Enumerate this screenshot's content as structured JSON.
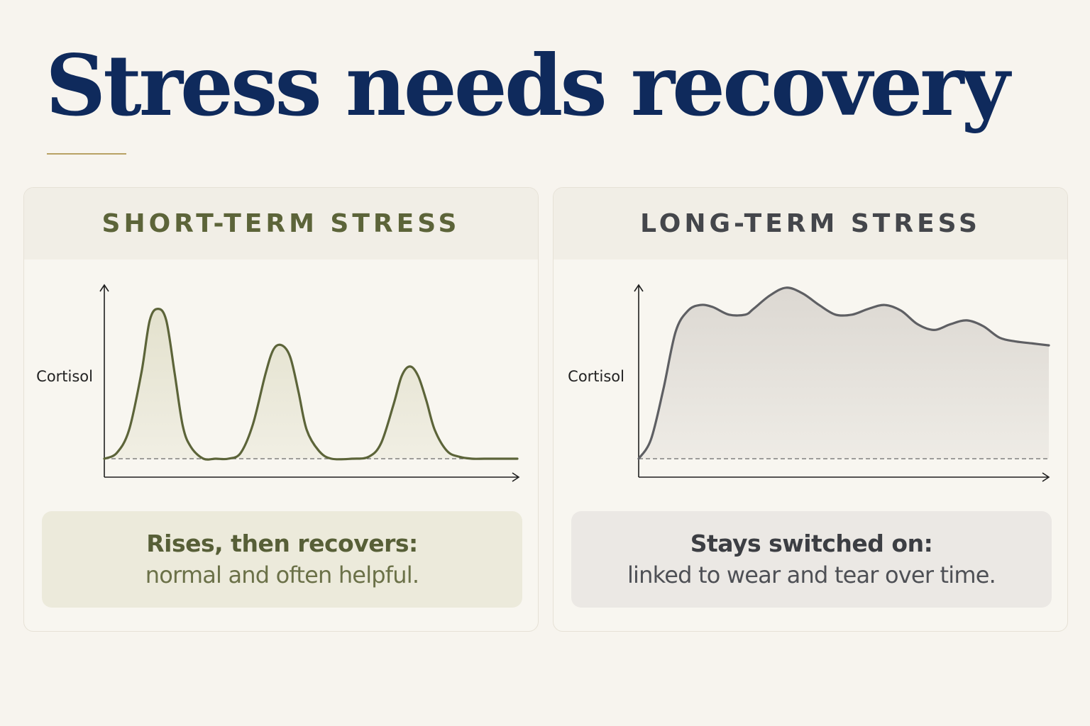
{
  "title": "Stress needs recovery",
  "colors": {
    "title": "#0f2a5c",
    "accent_rule": "#b8a164",
    "short_line": "#5c6439",
    "short_fill": "#e3e1cd",
    "long_line": "#5e5f63",
    "long_fill": "#dcd8d2"
  },
  "panels": [
    {
      "heading": "SHORT-TERM STRESS",
      "caption_bold": "Rises, then recovers:",
      "caption_text": "normal and often helpful."
    },
    {
      "heading": "LONG-TERM STRESS",
      "caption_bold": "Stays switched on:",
      "caption_text": "linked to wear and tear over time."
    }
  ],
  "chart_data": [
    {
      "type": "line",
      "ylabel": "Cortisol",
      "xlabel": "",
      "baseline": 0,
      "xlim": [
        0,
        100
      ],
      "ylim": [
        0,
        100
      ],
      "grid": false,
      "legend": "none",
      "x": [
        0,
        3,
        6,
        9,
        11,
        13,
        15,
        17,
        19,
        21,
        24,
        27,
        30,
        33,
        36,
        39,
        41,
        43,
        45,
        47,
        49,
        52,
        55,
        60,
        64,
        67,
        70,
        72,
        74,
        76,
        78,
        80,
        83,
        86,
        89,
        92,
        96,
        100
      ],
      "y": [
        0,
        3,
        15,
        45,
        72,
        78,
        72,
        45,
        17,
        6,
        0,
        0,
        0,
        3,
        18,
        44,
        57,
        59,
        53,
        35,
        15,
        4,
        0,
        0,
        1,
        8,
        28,
        43,
        48,
        43,
        30,
        15,
        4,
        1,
        0,
        0,
        0,
        0
      ]
    },
    {
      "type": "line",
      "ylabel": "Cortisol",
      "xlabel": "",
      "baseline": 0,
      "xlim": [
        0,
        100
      ],
      "ylim": [
        0,
        100
      ],
      "grid": false,
      "legend": "none",
      "x": [
        0,
        3,
        6,
        9,
        12,
        15,
        18,
        22,
        26,
        28,
        32,
        36,
        40,
        44,
        48,
        52,
        56,
        60,
        64,
        68,
        72,
        76,
        80,
        84,
        88,
        92,
        96,
        100
      ],
      "y": [
        0,
        10,
        36,
        66,
        77,
        80,
        79,
        75,
        75,
        78,
        85,
        89,
        86,
        80,
        75,
        75,
        78,
        80,
        77,
        70,
        67,
        70,
        72,
        69,
        63,
        61,
        60,
        59
      ]
    }
  ]
}
